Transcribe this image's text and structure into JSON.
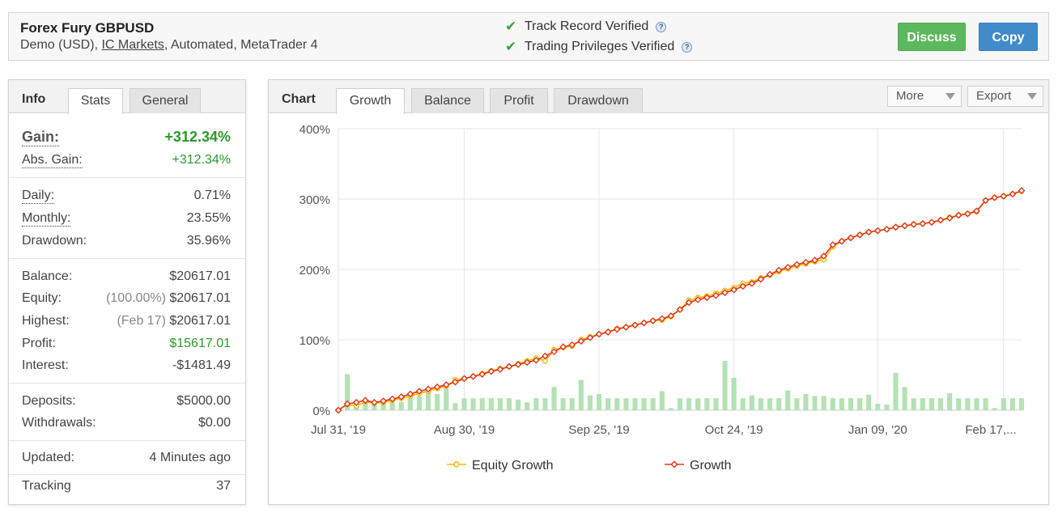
{
  "header": {
    "title": "Forex Fury GBPUSD",
    "sub_prefix": "Demo (USD),",
    "broker_link": "IC Markets",
    "sub_suffix": ", Automated, MetaTrader 4",
    "verified": [
      {
        "label": "Track Record Verified",
        "icon": "check-icon"
      },
      {
        "label": "Trading Privileges Verified",
        "icon": "check-icon"
      }
    ],
    "discuss_label": "Discuss",
    "copy_label": "Copy",
    "colors": {
      "discuss": "#5cb85c",
      "copy": "#428bca",
      "check": "#3aa535"
    }
  },
  "left_panel": {
    "tabs": {
      "head": "Info",
      "stats": "Stats",
      "general": "General",
      "active": "Stats"
    },
    "gain": {
      "label": "Gain:",
      "value": "+312.34%"
    },
    "abs_gain": {
      "label": "Abs. Gain:",
      "value": "+312.34%"
    },
    "daily": {
      "label": "Daily:",
      "value": "0.71%"
    },
    "monthly": {
      "label": "Monthly:",
      "value": "23.55%"
    },
    "drawdown": {
      "label": "Drawdown:",
      "value": "35.96%"
    },
    "balance": {
      "label": "Balance:",
      "value": "$20617.01"
    },
    "equity": {
      "label": "Equity:",
      "note": "(100.00%)",
      "value": "$20617.01"
    },
    "highest": {
      "label": "Highest:",
      "note": "(Feb 17)",
      "value": "$20617.01"
    },
    "profit": {
      "label": "Profit:",
      "value": "$15617.01"
    },
    "interest": {
      "label": "Interest:",
      "value": "-$1481.49"
    },
    "deposits": {
      "label": "Deposits:",
      "value": "$5000.00"
    },
    "withdrawals": {
      "label": "Withdrawals:",
      "value": "$0.00"
    },
    "updated": {
      "label": "Updated:",
      "value": "4 Minutes ago"
    },
    "tracking": {
      "label": "Tracking",
      "value": "37"
    }
  },
  "chart_panel": {
    "tabs": {
      "head": "Chart",
      "growth": "Growth",
      "balance": "Balance",
      "profit": "Profit",
      "drawdown": "Drawdown",
      "active": "Growth"
    },
    "more_label": "More",
    "export_label": "Export"
  },
  "chart_data": {
    "type": "line",
    "title": "",
    "ylabel": "",
    "xlabel": "",
    "ylim": [
      0,
      400
    ],
    "y_ticks": [
      "0%",
      "100%",
      "200%",
      "300%",
      "400%"
    ],
    "x_tick_labels": [
      "Jul 31, '19",
      "Aug 30, '19",
      "Sep 25, '19",
      "Oct 24, '19",
      "Jan 09, '20",
      "Feb 17,..."
    ],
    "x_tick_index": [
      0,
      14,
      29,
      44,
      60,
      74
    ],
    "grid": true,
    "legend_position": "bottom",
    "colors": {
      "equity": "#f5b800",
      "growth": "#e0381b",
      "bars": "#b3e2b3"
    },
    "series": [
      {
        "name": "Equity Growth",
        "values": [
          0,
          8,
          6,
          12,
          10,
          11,
          14,
          17,
          20,
          24,
          27,
          31,
          34,
          43,
          45,
          48,
          52,
          56,
          59,
          62,
          66,
          70,
          74,
          70,
          86,
          89,
          91,
          100,
          104,
          108,
          111,
          116,
          118,
          121,
          124,
          127,
          128,
          133,
          143,
          156,
          160,
          162,
          166,
          170,
          174,
          180,
          182,
          188,
          192,
          197,
          201,
          205,
          208,
          211,
          214,
          232,
          240,
          245,
          249,
          253,
          255,
          257,
          260,
          262,
          264,
          265,
          267,
          270,
          274,
          277,
          279,
          282,
          298,
          302,
          304,
          307,
          311
        ]
      },
      {
        "name": "Growth",
        "values": [
          0,
          9,
          11,
          14,
          11,
          13,
          16,
          19,
          23,
          27,
          30,
          33,
          36,
          40,
          45,
          48,
          51,
          55,
          58,
          62,
          65,
          68,
          71,
          77,
          83,
          90,
          93,
          98,
          103,
          108,
          111,
          115,
          118,
          121,
          124,
          127,
          130,
          134,
          143,
          153,
          157,
          160,
          163,
          167,
          171,
          176,
          180,
          186,
          193,
          199,
          203,
          207,
          210,
          213,
          219,
          235,
          240,
          245,
          249,
          253,
          255,
          257,
          260,
          262,
          264,
          265,
          267,
          270,
          273,
          277,
          279,
          283,
          298,
          302,
          304,
          307,
          312
        ]
      }
    ],
    "bars": [
      0,
      51,
      12,
      15,
      11,
      16,
      16,
      12,
      17,
      20,
      27,
      23,
      30,
      10,
      17,
      17,
      17,
      17,
      17,
      17,
      15,
      11,
      17,
      17,
      33,
      17,
      17,
      43,
      21,
      23,
      17,
      17,
      17,
      17,
      17,
      17,
      27,
      3,
      17,
      17,
      17,
      17,
      17,
      70,
      46,
      17,
      21,
      17,
      17,
      17,
      28,
      17,
      23,
      20,
      20,
      17,
      17,
      17,
      17,
      22,
      9,
      8,
      53,
      33,
      17,
      17,
      17,
      17,
      24,
      17,
      17,
      17,
      17,
      3,
      17,
      17,
      17
    ]
  }
}
